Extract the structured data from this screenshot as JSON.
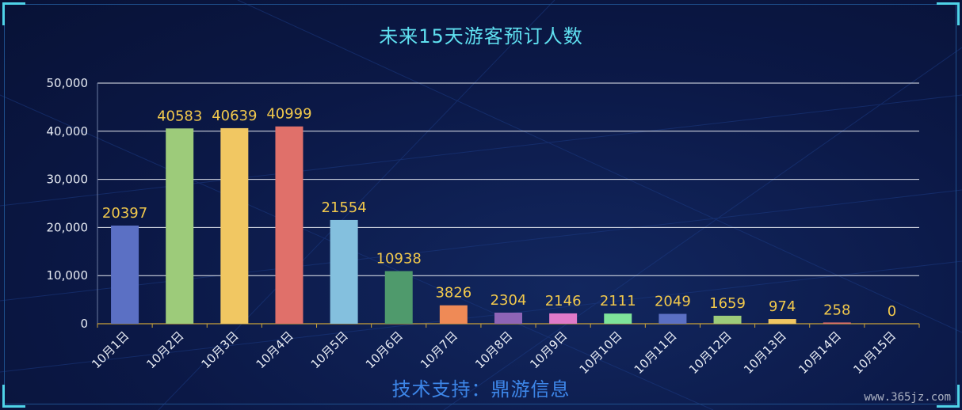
{
  "chart_data": {
    "type": "bar",
    "title": "未来15天游客预订人数",
    "categories": [
      "10月1日",
      "10月2日",
      "10月3日",
      "10月4日",
      "10月5日",
      "10月6日",
      "10月7日",
      "10月8日",
      "10月9日",
      "10月10日",
      "10月11日",
      "10月12日",
      "10月13日",
      "10月14日",
      "10月15日"
    ],
    "values": [
      20397,
      40583,
      40639,
      40999,
      21554,
      10938,
      3826,
      2304,
      2146,
      2111,
      2049,
      1659,
      974,
      258,
      0
    ],
    "value_labels": [
      "20397",
      "40583",
      "40639",
      "40999",
      "21554",
      "10938",
      "3826",
      "2304",
      "2146",
      "2111",
      "2049",
      "1659",
      "974",
      "258",
      "0"
    ],
    "y_ticks": [
      "0",
      "10,000",
      "20,000",
      "30,000",
      "40,000",
      "50,000"
    ],
    "y_tick_values": [
      0,
      10000,
      20000,
      30000,
      40000,
      50000
    ],
    "ylim": [
      0,
      50000
    ],
    "xlabel": "",
    "ylabel": "",
    "grid": true,
    "bar_colors": [
      "#5b70c4",
      "#9dcb7a",
      "#f1c762",
      "#e0706a",
      "#84c0de",
      "#4f9a6c",
      "#ef8a56",
      "#8e64b6",
      "#e07ac8",
      "#7ee39a",
      "#5b70c4",
      "#9dcb7a",
      "#f1c762",
      "#e0706a",
      "#84c0de"
    ]
  },
  "footer": {
    "text": "技术支持：鼎游信息"
  },
  "watermark": {
    "text": "www.365jz.com"
  },
  "colors": {
    "title": "#5fe0f0",
    "value_label": "#f2c94c",
    "footer": "#3d86e8",
    "background": "#0a1640"
  }
}
